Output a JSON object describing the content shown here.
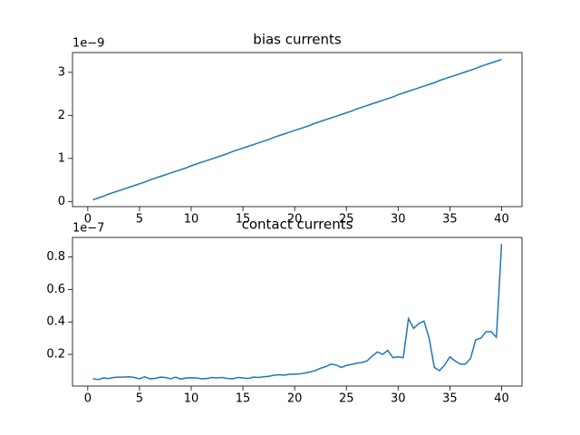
{
  "chart_data": [
    {
      "type": "line",
      "title": "bias currents",
      "offset_label": "1e−9",
      "x": [
        0.5,
        1,
        1.5,
        2,
        2.5,
        3,
        3.5,
        4,
        4.5,
        5,
        5.5,
        6,
        6.5,
        7,
        7.5,
        8,
        8.5,
        9,
        9.5,
        10,
        10.5,
        11,
        11.5,
        12,
        12.5,
        13,
        13.5,
        14,
        14.5,
        15,
        15.5,
        16,
        16.5,
        17,
        17.5,
        18,
        18.5,
        19,
        19.5,
        20,
        20.5,
        21,
        21.5,
        22,
        22.5,
        23,
        23.5,
        24,
        24.5,
        25,
        25.5,
        26,
        26.5,
        27,
        27.5,
        28,
        28.5,
        29,
        29.5,
        30,
        30.5,
        31,
        31.5,
        32,
        32.5,
        33,
        33.5,
        34,
        34.5,
        35,
        35.5,
        36,
        36.5,
        37,
        37.5,
        38,
        38.5,
        39,
        39.5,
        40
      ],
      "series": [
        {
          "color": "#1f77b4",
          "values": [
            0.04,
            0.08,
            0.12,
            0.17,
            0.21,
            0.25,
            0.29,
            0.33,
            0.37,
            0.41,
            0.45,
            0.5,
            0.54,
            0.58,
            0.62,
            0.66,
            0.7,
            0.74,
            0.78,
            0.83,
            0.87,
            0.91,
            0.95,
            0.99,
            1.03,
            1.07,
            1.11,
            1.16,
            1.2,
            1.24,
            1.28,
            1.32,
            1.36,
            1.4,
            1.44,
            1.49,
            1.53,
            1.57,
            1.61,
            1.65,
            1.69,
            1.73,
            1.77,
            1.82,
            1.86,
            1.9,
            1.94,
            1.98,
            2.02,
            2.06,
            2.1,
            2.15,
            2.19,
            2.23,
            2.27,
            2.31,
            2.35,
            2.39,
            2.43,
            2.48,
            2.52,
            2.56,
            2.6,
            2.64,
            2.68,
            2.72,
            2.76,
            2.81,
            2.85,
            2.89,
            2.93,
            2.97,
            3.01,
            3.05,
            3.09,
            3.14,
            3.18,
            3.22,
            3.26,
            3.3
          ]
        }
      ],
      "xlim": [
        -1.475,
        41.975
      ],
      "xticks": [
        0,
        5,
        10,
        15,
        20,
        25,
        30,
        35,
        40
      ],
      "ylim": [
        -0.12,
        3.46
      ],
      "yticks": [
        0,
        1,
        2,
        3
      ]
    },
    {
      "type": "line",
      "title": "contact currents",
      "offset_label": "1e−7",
      "x": [
        0.5,
        1,
        1.5,
        2,
        2.5,
        3,
        3.5,
        4,
        4.5,
        5,
        5.5,
        6,
        6.5,
        7,
        7.5,
        8,
        8.5,
        9,
        9.5,
        10,
        10.5,
        11,
        11.5,
        12,
        12.5,
        13,
        13.5,
        14,
        14.5,
        15,
        15.5,
        16,
        16.5,
        17,
        17.5,
        18,
        18.5,
        19,
        19.5,
        20,
        20.5,
        21,
        21.5,
        22,
        22.5,
        23,
        23.5,
        24,
        24.5,
        25,
        25.5,
        26,
        26.5,
        27,
        27.5,
        28,
        28.5,
        29,
        29.5,
        30,
        30.5,
        31,
        31.5,
        32,
        32.5,
        33,
        33.5,
        34,
        34.5,
        35,
        35.5,
        36,
        36.5,
        37,
        37.5,
        38,
        38.5,
        39,
        39.5,
        40
      ],
      "series": [
        {
          "color": "#1f77b4",
          "values": [
            0.05,
            0.045,
            0.055,
            0.052,
            0.058,
            0.06,
            0.06,
            0.062,
            0.058,
            0.05,
            0.062,
            0.05,
            0.052,
            0.06,
            0.058,
            0.05,
            0.06,
            0.048,
            0.055,
            0.056,
            0.055,
            0.05,
            0.052,
            0.058,
            0.055,
            0.058,
            0.052,
            0.05,
            0.058,
            0.055,
            0.052,
            0.06,
            0.058,
            0.062,
            0.065,
            0.072,
            0.075,
            0.072,
            0.078,
            0.078,
            0.08,
            0.085,
            0.092,
            0.1,
            0.115,
            0.125,
            0.14,
            0.135,
            0.12,
            0.132,
            0.138,
            0.145,
            0.15,
            0.16,
            0.19,
            0.215,
            0.2,
            0.225,
            0.18,
            0.185,
            0.18,
            0.42,
            0.36,
            0.39,
            0.405,
            0.3,
            0.12,
            0.1,
            0.135,
            0.185,
            0.16,
            0.14,
            0.14,
            0.175,
            0.29,
            0.3,
            0.34,
            0.34,
            0.305,
            0.88
          ]
        }
      ],
      "xlim": [
        -1.475,
        41.975
      ],
      "xticks": [
        0,
        5,
        10,
        15,
        20,
        25,
        30,
        35,
        40
      ],
      "ylim": [
        0.005,
        0.92
      ],
      "yticks": [
        0.2,
        0.4,
        0.6,
        0.8
      ]
    }
  ]
}
